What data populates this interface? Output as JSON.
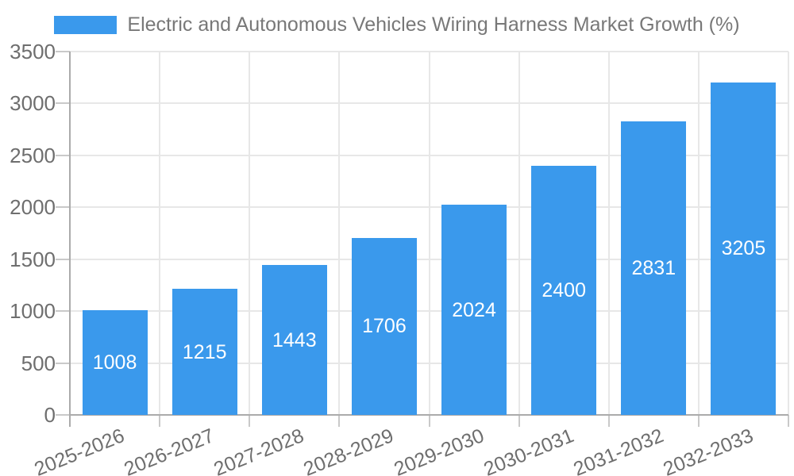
{
  "legend": {
    "label": "Electric and Autonomous Vehicles Wiring Harness Market Growth (%)"
  },
  "chart_data": {
    "type": "bar",
    "title": "",
    "categories": [
      "2025-2026",
      "2026-2027",
      "2027-2028",
      "2028-2029",
      "2029-2030",
      "2030-2031",
      "2031-2032",
      "2032-2033"
    ],
    "values": [
      1008,
      1215,
      1443,
      1706,
      2024,
      2400,
      2831,
      3205
    ],
    "series_name": "Electric and Autonomous Vehicles Wiring Harness Market Growth (%)",
    "xlabel": "",
    "ylabel": "",
    "ylim": [
      0,
      3500
    ],
    "yticks": [
      3500,
      3000,
      2500,
      2000,
      1500,
      1000,
      500,
      0
    ],
    "grid": true,
    "legend_position": "top",
    "value_labels_position": "inside-center",
    "x_tick_rotation_deg": -22
  },
  "colors": {
    "bar": "#3A99EC",
    "grid": "#E7E7E7",
    "axis": "#ABABAB",
    "tick": "#C9C9C9",
    "tick_label": "#6E6E6E",
    "legend_label": "#787878",
    "value_label": "#FFFFFF",
    "background": "#FFFFFF"
  }
}
